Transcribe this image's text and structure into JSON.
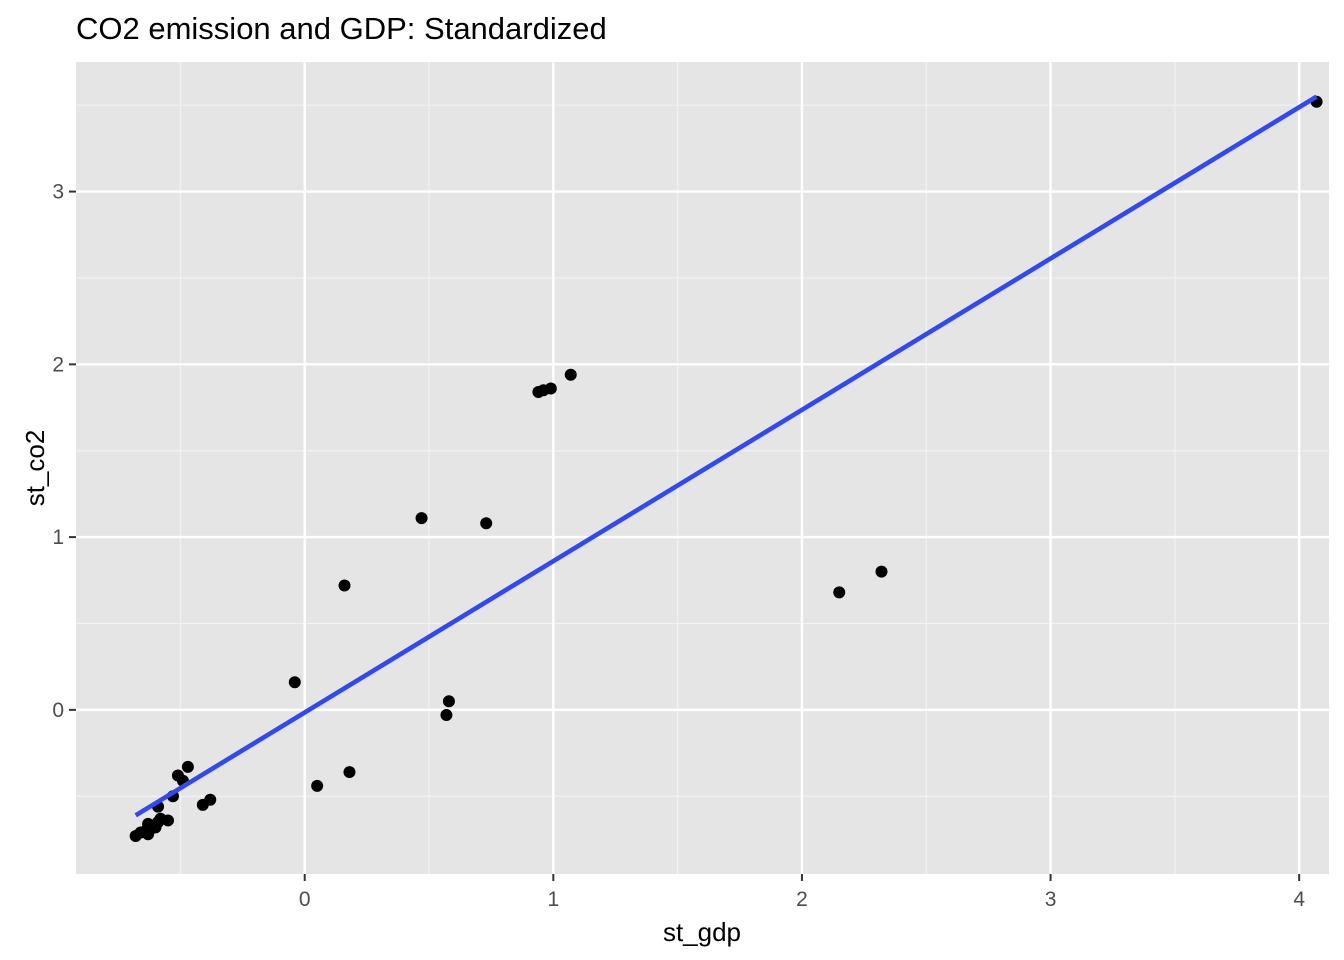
{
  "chart_data": {
    "type": "scatter",
    "title": "CO2 emission and GDP: Standardized",
    "xlabel": "st_gdp",
    "ylabel": "st_co2",
    "xlim": [
      -0.92,
      4.12
    ],
    "ylim": [
      -0.95,
      3.75
    ],
    "x_ticks": [
      0,
      1,
      2,
      3,
      4
    ],
    "y_ticks": [
      0,
      1,
      2,
      3
    ],
    "x_minor_ticks": [
      -0.5,
      0.5,
      1.5,
      2.5,
      3.5
    ],
    "y_minor_ticks": [
      -0.5,
      0.5,
      1.5,
      2.5,
      3.5
    ],
    "grid": true,
    "legend": "none",
    "panel_background": "#e5e5e5",
    "point_color": "#000000",
    "line_color": "#3048f8",
    "series": [
      {
        "type": "scatter",
        "points": [
          [
            -0.68,
            -0.73
          ],
          [
            -0.66,
            -0.71
          ],
          [
            -0.64,
            -0.7
          ],
          [
            -0.63,
            -0.72
          ],
          [
            -0.62,
            -0.69
          ],
          [
            -0.63,
            -0.66
          ],
          [
            -0.61,
            -0.67
          ],
          [
            -0.6,
            -0.68
          ],
          [
            -0.59,
            -0.65
          ],
          [
            -0.58,
            -0.63
          ],
          [
            -0.55,
            -0.64
          ],
          [
            -0.59,
            -0.56
          ],
          [
            -0.53,
            -0.5
          ],
          [
            -0.51,
            -0.38
          ],
          [
            -0.49,
            -0.41
          ],
          [
            -0.47,
            -0.33
          ],
          [
            -0.41,
            -0.55
          ],
          [
            -0.38,
            -0.52
          ],
          [
            -0.04,
            0.16
          ],
          [
            0.05,
            -0.44
          ],
          [
            0.16,
            0.72
          ],
          [
            0.18,
            -0.36
          ],
          [
            0.47,
            1.11
          ],
          [
            0.57,
            -0.03
          ],
          [
            0.58,
            0.05
          ],
          [
            0.73,
            1.08
          ],
          [
            0.94,
            1.84
          ],
          [
            0.96,
            1.85
          ],
          [
            0.99,
            1.86
          ],
          [
            1.07,
            1.94
          ],
          [
            2.15,
            0.68
          ],
          [
            2.32,
            0.8
          ],
          [
            4.07,
            3.52
          ]
        ]
      },
      {
        "type": "line",
        "points": [
          [
            -0.68,
            -0.61
          ],
          [
            4.07,
            3.55
          ]
        ]
      }
    ]
  }
}
